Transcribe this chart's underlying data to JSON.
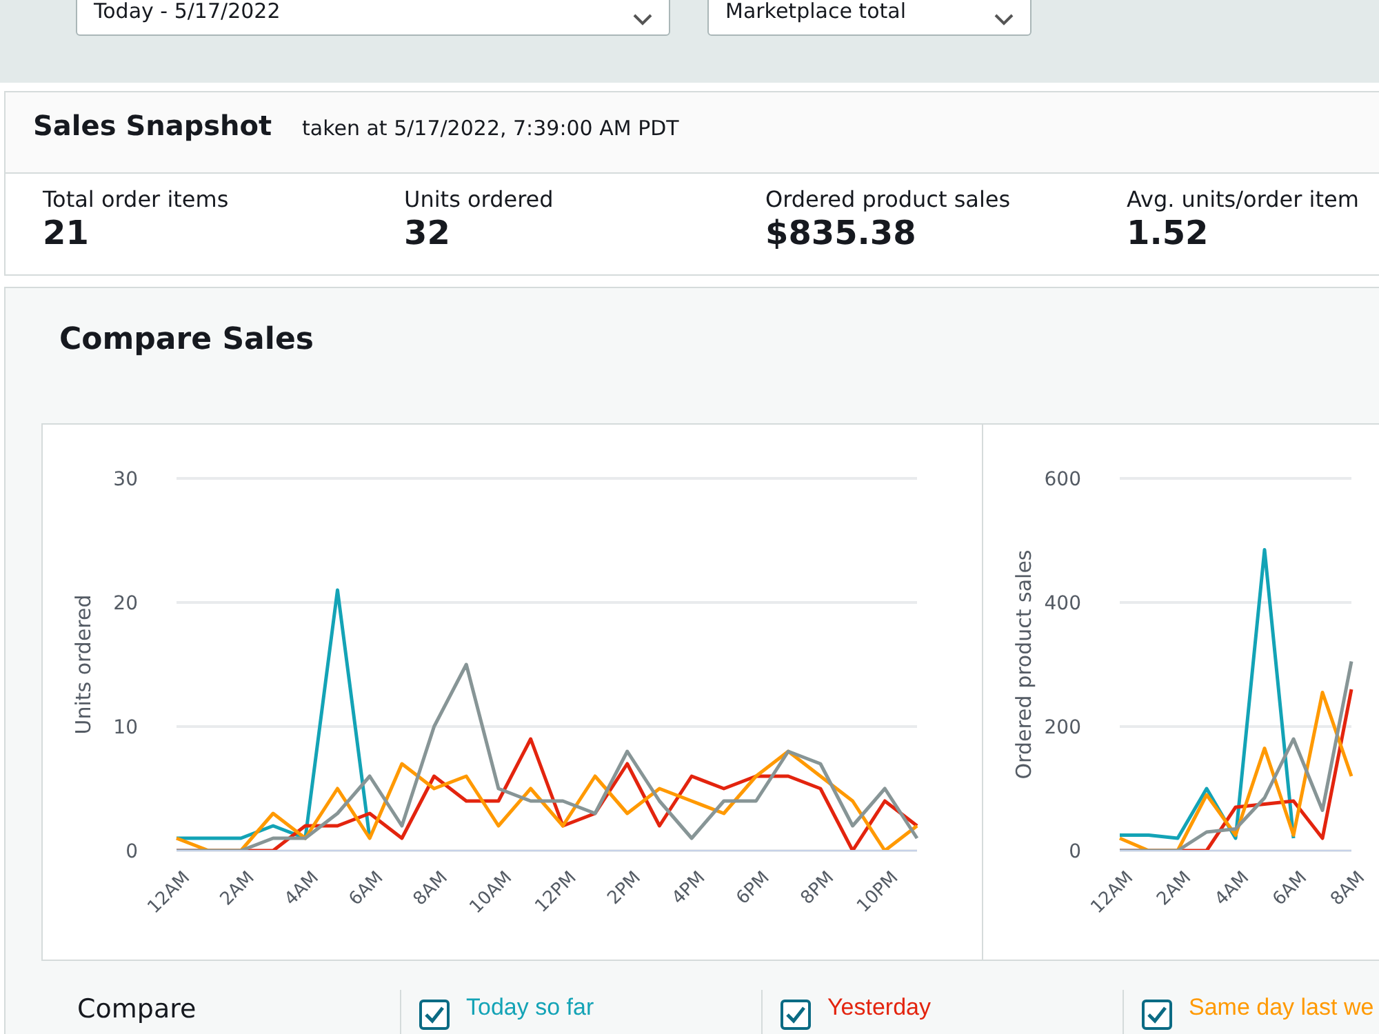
{
  "chart_data": [
    {
      "type": "other",
      "title": "Sales Snapshot",
      "subtitle": "taken at 5/17/2022, 7:39:00 AM PDT",
      "annotations": [
        "Today - 5/17/2022",
        "Marketplace total",
        "Total order items",
        "21",
        "Units ordered",
        "32",
        "Ordered product sales",
        "$835.38",
        "Avg. units/order item",
        "1.52"
      ]
    },
    {
      "type": "line",
      "title": "Compare Sales",
      "ylabel": "Units ordered",
      "categories": [
        "12AM",
        null,
        "2AM",
        null,
        "4AM",
        null,
        "6AM",
        null,
        "8AM",
        null,
        "10AM",
        null,
        "12PM",
        null,
        "2PM",
        null,
        "4PM",
        null,
        "6PM",
        null,
        "8PM",
        null,
        "10PM",
        null
      ],
      "ylim": [
        0,
        30
      ],
      "yticks": [
        0,
        10,
        20,
        30
      ],
      "grid": "y",
      "legend": "bottom",
      "legend_title": "Compare",
      "series": [
        {
          "name": "Today so far",
          "color": "#13a3b6",
          "values": [
            1,
            1,
            1,
            2,
            1,
            21,
            1,
            null,
            null,
            null,
            null,
            null,
            null,
            null,
            null,
            null,
            null,
            null,
            null,
            null,
            null,
            null,
            null,
            null
          ]
        },
        {
          "name": "Yesterday",
          "color": "#e3240e",
          "values": [
            0,
            0,
            0,
            0,
            2,
            2,
            3,
            1,
            6,
            4,
            4,
            9,
            2,
            3,
            7,
            2,
            6,
            5,
            6,
            6,
            5,
            0,
            4,
            2
          ]
        },
        {
          "name": "Same day last we",
          "color": "#ff9900",
          "values": [
            1,
            0,
            0,
            3,
            1,
            5,
            1,
            7,
            5,
            6,
            2,
            5,
            2,
            6,
            3,
            5,
            4,
            3,
            6,
            8,
            6,
            4,
            0,
            2
          ]
        },
        {
          "color": "#879596",
          "values": [
            0,
            0,
            0,
            1,
            1,
            3,
            6,
            2,
            10,
            15,
            5,
            4,
            4,
            3,
            8,
            4,
            1,
            4,
            4,
            8,
            7,
            2,
            5,
            1
          ]
        }
      ]
    },
    {
      "type": "line",
      "ylabel": "Ordered product sales",
      "categories": [
        "12AM",
        null,
        "2AM",
        null,
        "4AM",
        null,
        "6AM",
        null,
        "8AM"
      ],
      "ylim": [
        0,
        600
      ],
      "yticks": [
        0,
        200,
        400,
        600
      ],
      "grid": "y",
      "series": [
        {
          "color": "#13a3b6",
          "values": [
            25,
            25,
            20,
            100,
            20,
            485,
            20,
            null,
            null
          ]
        },
        {
          "color": "#e3240e",
          "values": [
            0,
            0,
            0,
            0,
            70,
            75,
            80,
            20,
            260
          ]
        },
        {
          "color": "#ff9900",
          "values": [
            20,
            0,
            0,
            90,
            25,
            165,
            25,
            255,
            120
          ]
        },
        {
          "color": "#879596",
          "values": [
            0,
            0,
            0,
            30,
            35,
            85,
            180,
            65,
            305
          ]
        }
      ]
    }
  ]
}
